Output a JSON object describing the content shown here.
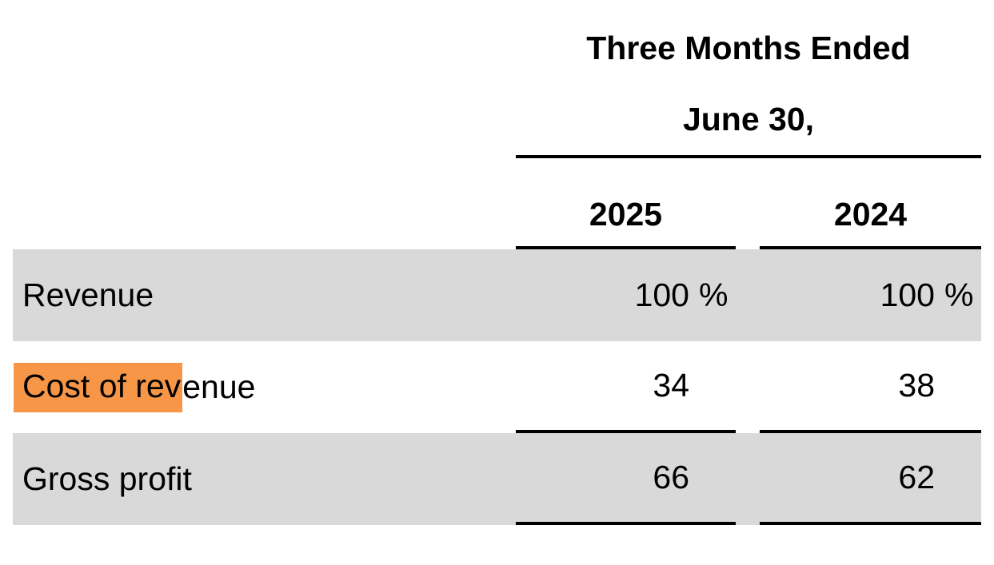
{
  "table": {
    "header": {
      "title_line1": "Three Months Ended",
      "title_line2": "June 30,",
      "columns": [
        "2025",
        "2024"
      ]
    },
    "rows": [
      {
        "label": "Revenue",
        "values": [
          "100",
          "100"
        ],
        "suffix": "%",
        "shaded": true
      },
      {
        "label": "Cost of revenue",
        "label_highlight": "Cost of rev",
        "label_rest": "enue",
        "values": [
          "34",
          "38"
        ],
        "suffix": "",
        "shaded": false
      },
      {
        "label": "Gross profit",
        "values": [
          "66",
          "62"
        ],
        "suffix": "",
        "shaded": true
      }
    ],
    "colors": {
      "row_shade": "#D9D9D9",
      "highlight": "#F79646",
      "text": "#000000",
      "rule": "#000000"
    }
  },
  "chart_data": {
    "type": "table",
    "title": "Three Months Ended June 30,",
    "columns": [
      "2025",
      "2024"
    ],
    "rows": [
      {
        "label": "Revenue",
        "2025": "100 %",
        "2024": "100 %"
      },
      {
        "label": "Cost of revenue",
        "2025": "34",
        "2024": "38"
      },
      {
        "label": "Gross profit",
        "2025": "66",
        "2024": "62"
      }
    ]
  }
}
